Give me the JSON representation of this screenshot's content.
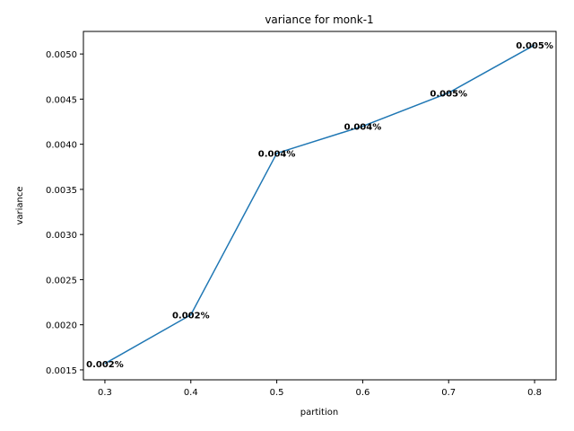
{
  "chart_data": {
    "type": "line",
    "title": "variance for monk-1",
    "xlabel": "partition",
    "ylabel": "variance",
    "x": [
      0.3,
      0.4,
      0.5,
      0.6,
      0.7,
      0.8
    ],
    "series": [
      {
        "values": [
          0.00157,
          0.00211,
          0.0039,
          0.0042,
          0.00457,
          0.0051
        ],
        "color": "#1f77b4"
      }
    ],
    "data_labels": [
      "0.002%",
      "0.002%",
      "0.004%",
      "0.004%",
      "0.005%",
      "0.005%"
    ],
    "xlim": [
      0.275,
      0.825
    ],
    "ylim": [
      0.00139,
      0.00525
    ],
    "x_ticks": [
      0.3,
      0.4,
      0.5,
      0.6,
      0.7,
      0.8
    ],
    "x_tick_labels": [
      "0.3",
      "0.4",
      "0.5",
      "0.6",
      "0.7",
      "0.8"
    ],
    "y_ticks": [
      0.0015,
      0.002,
      0.0025,
      0.003,
      0.0035,
      0.004,
      0.0045,
      0.005
    ],
    "y_tick_labels": [
      "0.0015",
      "0.0020",
      "0.0025",
      "0.0030",
      "0.0035",
      "0.0040",
      "0.0045",
      "0.0050"
    ],
    "grid": false,
    "legend": false
  }
}
